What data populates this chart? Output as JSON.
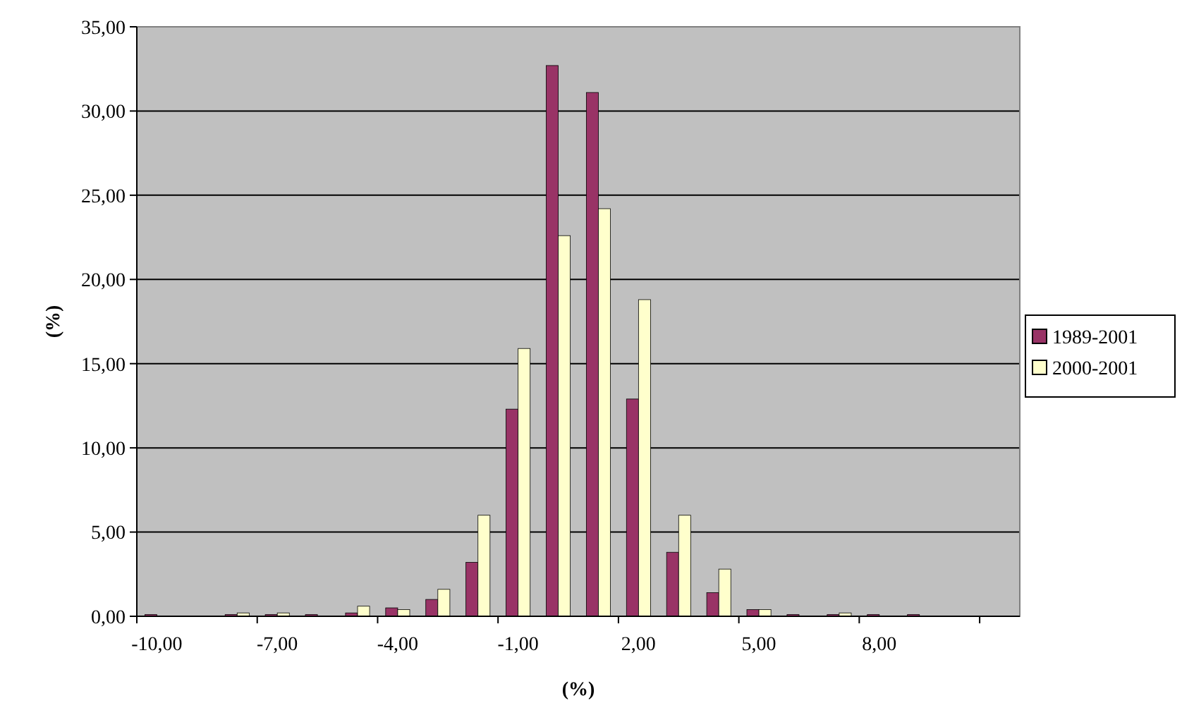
{
  "chart_data": {
    "type": "bar",
    "xlabel": "(%)",
    "ylabel": "(%)",
    "categories": [
      "-10,00",
      null,
      null,
      "-7,00",
      null,
      null,
      "-4,00",
      null,
      null,
      "-1,00",
      null,
      null,
      "2,00",
      null,
      null,
      "5,00",
      null,
      null,
      "8,00",
      null,
      null,
      null
    ],
    "series": [
      {
        "name": "1989-2001",
        "color": "#993366",
        "values": [
          0.1,
          0,
          0.1,
          0.1,
          0.1,
          0.2,
          0.5,
          1,
          3.2,
          12.3,
          32.7,
          31.1,
          12.9,
          3.8,
          1.4,
          0.4,
          0.1,
          0.1,
          0.1,
          0.1,
          0,
          0
        ]
      },
      {
        "name": "2000-2001",
        "color": "#ffffcc",
        "values": [
          0,
          0,
          0.2,
          0.2,
          0,
          0.6,
          0.4,
          1.6,
          6,
          15.9,
          22.6,
          24.2,
          18.8,
          6,
          2.8,
          0.4,
          0,
          0.2,
          0,
          0,
          0,
          0
        ]
      }
    ],
    "ylim": [
      0,
      35
    ],
    "yticks": [
      {
        "value": 0,
        "label": "0,00"
      },
      {
        "value": 5,
        "label": "5,00"
      },
      {
        "value": 10,
        "label": "10,00"
      },
      {
        "value": 15,
        "label": "15,00"
      },
      {
        "value": 20,
        "label": "20,00"
      },
      {
        "value": 25,
        "label": "25,00"
      },
      {
        "value": 30,
        "label": "30,00"
      },
      {
        "value": 35,
        "label": "35,00"
      }
    ],
    "grid": "y",
    "legend": "right"
  }
}
